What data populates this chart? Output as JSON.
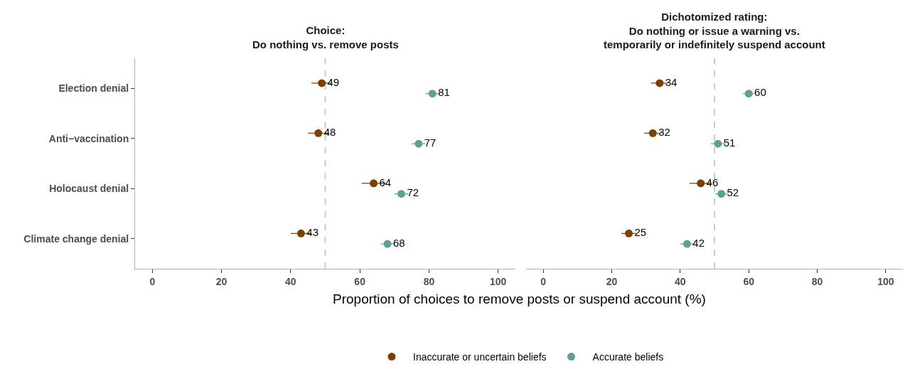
{
  "chart_data": [
    {
      "type": "scatter",
      "orientation": "horizontal",
      "title": "Choice:\nDo nothing vs. remove posts",
      "xlabel": "Proportion of choices to remove posts or suspend account (%)",
      "categories": [
        "Election denial",
        "Anti−vaccination",
        "Holocaust denial",
        "Climate change denial"
      ],
      "series": [
        {
          "name": "Inaccurate or uncertain beliefs",
          "color": "#7b3f00",
          "values": [
            49,
            48,
            64,
            43
          ],
          "errors": [
            3,
            3,
            3.5,
            3
          ]
        },
        {
          "name": "Accurate beliefs",
          "color": "#5f9e99",
          "values": [
            81,
            77,
            72,
            68
          ],
          "errors": [
            2,
            2,
            2,
            2
          ]
        }
      ],
      "xlim": [
        -5,
        105
      ],
      "xticks": [
        0,
        20,
        40,
        60,
        80,
        100
      ],
      "ref_lines": [
        {
          "axis": "x",
          "value": 50,
          "color": "#cccccc",
          "line_style": "dashed"
        }
      ],
      "data_labels": true,
      "marker": "circle",
      "grid": false,
      "legend": "bottom"
    },
    {
      "type": "scatter",
      "orientation": "horizontal",
      "title": "Dichotomized rating:\nDo nothing or issue a warning vs.\ntemporarily or indefinitely suspend account",
      "categories": [
        null,
        null,
        null,
        null
      ],
      "series": [
        {
          "color": "#7b3f00",
          "values": [
            34,
            32,
            46,
            25
          ],
          "errors": [
            2.5,
            2.5,
            3.3,
            2.2
          ]
        },
        {
          "color": "#5f9e99",
          "values": [
            60,
            51,
            52,
            42
          ],
          "errors": [
            1.7,
            2,
            1.8,
            2
          ]
        }
      ],
      "xlim": [
        -5,
        105
      ],
      "xticks": [
        0,
        20,
        40,
        60,
        80,
        100
      ],
      "ref_lines": [
        {
          "axis": "x",
          "value": 50,
          "color": "#cccccc",
          "line_style": "dashed"
        }
      ],
      "data_labels": true,
      "marker": "circle",
      "grid": false,
      "tick_labels": "x"
    }
  ]
}
